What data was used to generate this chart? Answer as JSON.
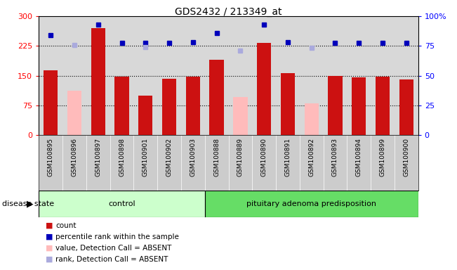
{
  "title": "GDS2432 / 213349_at",
  "samples": [
    "GSM100895",
    "GSM100896",
    "GSM100897",
    "GSM100898",
    "GSM100901",
    "GSM100902",
    "GSM100903",
    "GSM100888",
    "GSM100889",
    "GSM100890",
    "GSM100891",
    "GSM100892",
    "GSM100893",
    "GSM100894",
    "GSM100899",
    "GSM100900"
  ],
  "count_values": [
    163,
    null,
    270,
    147,
    100,
    142,
    148,
    190,
    null,
    232,
    157,
    null,
    150,
    145,
    148,
    141
  ],
  "count_absent": [
    null,
    112,
    null,
    null,
    null,
    null,
    null,
    null,
    95,
    null,
    null,
    80,
    null,
    null,
    null,
    null
  ],
  "rank_values": [
    253,
    null,
    278,
    232,
    232,
    232,
    235,
    258,
    null,
    278,
    235,
    null,
    232,
    232,
    232,
    232
  ],
  "rank_absent": [
    null,
    228,
    null,
    null,
    222,
    null,
    null,
    null,
    213,
    null,
    null,
    220,
    null,
    null,
    null,
    null
  ],
  "n_control": 7,
  "n_disease": 9,
  "control_label": "control",
  "disease_label": "pituitary adenoma predisposition",
  "disease_state_label": "disease state",
  "bar_color_normal": "#cc1111",
  "bar_color_absent": "#ffbbbb",
  "dot_color_normal": "#0000bb",
  "dot_color_absent": "#aaaadd",
  "ylim_left": [
    0,
    300
  ],
  "ylim_right": [
    0,
    100
  ],
  "yticks_left": [
    0,
    75,
    150,
    225,
    300
  ],
  "yticks_right": [
    0,
    25,
    50,
    75,
    100
  ],
  "hlines": [
    75,
    150,
    225
  ],
  "legend_items": [
    {
      "label": "count",
      "color": "#cc1111"
    },
    {
      "label": "percentile rank within the sample",
      "color": "#0000bb"
    },
    {
      "label": "value, Detection Call = ABSENT",
      "color": "#ffbbbb"
    },
    {
      "label": "rank, Detection Call = ABSENT",
      "color": "#aaaadd"
    }
  ],
  "plot_bg_color": "#d8d8d8",
  "xlabels_bg_color": "#cccccc",
  "control_bg": "#ccffcc",
  "disease_bg": "#66dd66",
  "fig_bg": "#ffffff"
}
